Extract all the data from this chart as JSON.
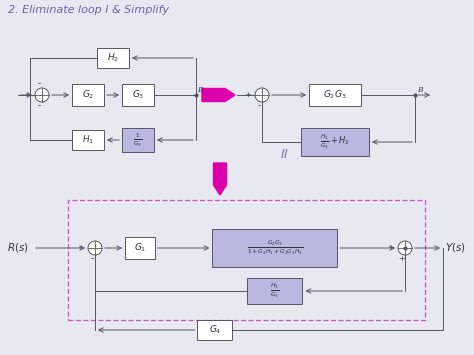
{
  "title": "2. Eliminate loop I & Simplify",
  "title_color": "#6666aa",
  "bg_color": "#e8e8f0",
  "block_color_white": "#ffffff",
  "block_color_blue": "#b8b8e0",
  "block_border": "#555566",
  "arrow_color": "#dd00aa",
  "line_color": "#555566",
  "text_color": "#333344",
  "dashed_rect_color": "#cc55cc",
  "label_color": "#6666aa",
  "II_color": "#7777aa"
}
